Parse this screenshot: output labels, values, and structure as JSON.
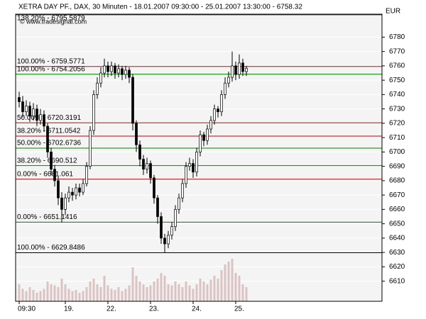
{
  "chart_data": {
    "type": "candlestick",
    "title": "XETRA DAY PF., DAX, 30 Minuten - 18.01.2007 09:30:00 - 25.01.2007 13:30:00 - 6758.32",
    "credit": "© www.tradesignal.com",
    "currency": "EUR",
    "ylim": [
      6596,
      6796
    ],
    "yticks": [
      6610,
      6620,
      6630,
      6640,
      6650,
      6660,
      6670,
      6680,
      6690,
      6700,
      6710,
      6720,
      6730,
      6740,
      6750,
      6760,
      6770,
      6780
    ],
    "grid": true,
    "categories": [
      "09:30",
      null,
      null,
      null,
      null,
      null,
      null,
      null,
      null,
      null,
      null,
      null,
      null,
      "19.",
      null,
      null,
      null,
      null,
      null,
      null,
      null,
      null,
      null,
      null,
      null,
      "22.",
      null,
      null,
      null,
      null,
      null,
      null,
      null,
      null,
      null,
      null,
      null,
      "23.",
      null,
      null,
      null,
      null,
      null,
      null,
      null,
      null,
      null,
      null,
      null,
      "24.",
      null,
      null,
      null,
      null,
      null,
      null,
      null,
      null,
      null,
      null,
      null,
      "25.",
      null,
      null,
      null
    ],
    "open": [
      6738,
      6735,
      6728,
      6732,
      6725,
      6730,
      6722,
      6726,
      6718,
      6700,
      6688,
      6680,
      6668,
      6660,
      6668,
      6672,
      6670,
      6675,
      6672,
      6678,
      6690,
      6715,
      6740,
      6748,
      6755,
      6760,
      6756,
      6760,
      6755,
      6758,
      6754,
      6757,
      6752,
      6720,
      6705,
      6695,
      6688,
      6692,
      6682,
      6668,
      6655,
      6640,
      6636,
      6642,
      6648,
      6660,
      6668,
      6678,
      6690,
      6692,
      6686,
      6700,
      6712,
      6708,
      6716,
      6722,
      6730,
      6728,
      6740,
      6748,
      6752,
      6760,
      6754,
      6762,
      6756
    ],
    "high": [
      6742,
      6739,
      6736,
      6735,
      6734,
      6733,
      6730,
      6729,
      6720,
      6703,
      6691,
      6683,
      6672,
      6671,
      6676,
      6675,
      6678,
      6678,
      6681,
      6693,
      6718,
      6743,
      6752,
      6759,
      6765,
      6763,
      6763,
      6762,
      6761,
      6760,
      6760,
      6759,
      6754,
      6722,
      6708,
      6698,
      6696,
      6694,
      6684,
      6670,
      6658,
      6643,
      6645,
      6651,
      6663,
      6671,
      6681,
      6693,
      6696,
      6695,
      6703,
      6715,
      6714,
      6719,
      6725,
      6733,
      6732,
      6743,
      6752,
      6756,
      6770,
      6763,
      6768,
      6765,
      6760
    ],
    "low": [
      6731,
      6724,
      6725,
      6721,
      6722,
      6718,
      6719,
      6714,
      6696,
      6684,
      6676,
      6663,
      6651,
      6656,
      6665,
      6666,
      6667,
      6669,
      6670,
      6676,
      6688,
      6712,
      6737,
      6745,
      6752,
      6752,
      6753,
      6751,
      6752,
      6750,
      6751,
      6748,
      6715,
      6700,
      6690,
      6684,
      6685,
      6678,
      6664,
      6650,
      6636,
      6630,
      6633,
      6639,
      6645,
      6657,
      6665,
      6675,
      6687,
      6682,
      6683,
      6697,
      6704,
      6705,
      6713,
      6719,
      6724,
      6725,
      6737,
      6745,
      6749,
      6750,
      6751,
      6753,
      6753
    ],
    "close": [
      6735,
      6728,
      6732,
      6725,
      6730,
      6722,
      6726,
      6718,
      6700,
      6688,
      6680,
      6668,
      6660,
      6668,
      6672,
      6670,
      6675,
      6672,
      6678,
      6690,
      6715,
      6740,
      6748,
      6755,
      6760,
      6756,
      6760,
      6755,
      6758,
      6754,
      6757,
      6752,
      6720,
      6705,
      6695,
      6688,
      6692,
      6682,
      6668,
      6655,
      6640,
      6636,
      6642,
      6648,
      6660,
      6668,
      6678,
      6690,
      6692,
      6686,
      6700,
      6712,
      6708,
      6716,
      6722,
      6730,
      6728,
      6740,
      6748,
      6752,
      6760,
      6754,
      6762,
      6756,
      6758.32
    ],
    "up_color": "#ffffff",
    "down_color": "#000000",
    "volume": [
      30,
      22,
      18,
      25,
      20,
      15,
      18,
      22,
      35,
      30,
      28,
      25,
      40,
      30,
      22,
      18,
      20,
      15,
      18,
      25,
      35,
      40,
      30,
      25,
      45,
      28,
      22,
      20,
      25,
      18,
      22,
      28,
      60,
      45,
      35,
      30,
      25,
      28,
      35,
      40,
      50,
      45,
      30,
      28,
      35,
      30,
      25,
      35,
      28,
      22,
      30,
      40,
      35,
      30,
      38,
      45,
      40,
      55,
      65,
      70,
      75,
      50,
      45,
      30,
      25
    ],
    "volume_lim": [
      0,
      100
    ],
    "volume_color": "#dcc3c3",
    "levels": [
      {
        "label": "138.20% - 6795.5879",
        "value": 6795.5879,
        "color": "#333333"
      },
      {
        "label": "100.00% - 6759.5771",
        "value": 6759.5771,
        "color": "#cc0000"
      },
      {
        "label": "100.00% - 6754.2056",
        "value": 6754.2056,
        "color": "#008000"
      },
      {
        "label": "50.00% - 6720.3191",
        "value": 6720.3191,
        "color": "#cc0000"
      },
      {
        "label": "38.20% - 6711.0542",
        "value": 6711.0542,
        "color": "#cc0000"
      },
      {
        "label": "50.00% - 6702.6736",
        "value": 6702.6736,
        "color": "#008000"
      },
      {
        "label": "38.20% - 6690.512",
        "value": 6690.512,
        "color": "#008000"
      },
      {
        "label": "0.00% - 6681.061",
        "value": 6681.061,
        "color": "#cc0000"
      },
      {
        "label": "0.00% - 6651.1416",
        "value": 6651.1416,
        "color": "#008000"
      },
      {
        "label": "100.00% - 6629.8486",
        "value": 6629.8486,
        "color": "#000000"
      }
    ]
  }
}
